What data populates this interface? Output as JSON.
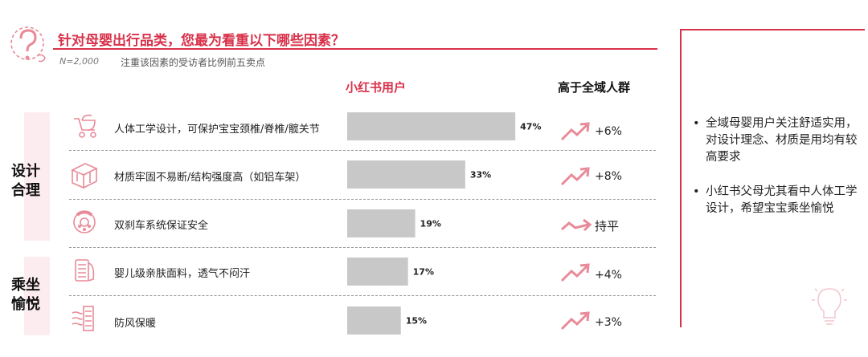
{
  "header": {
    "title": "针对母婴出行品类，您最为看重以下哪些因素？",
    "sample_size": "N=2,000",
    "subtitle": "注重该因素的受访者比例前五卖点"
  },
  "columns": {
    "share_header": "小红书用户",
    "diff_header": "高于全域人群"
  },
  "groups": [
    {
      "label_line1": "设计",
      "label_line2": "合理"
    },
    {
      "label_line1": "乘坐",
      "label_line2": "愉悦"
    }
  ],
  "chart_data": {
    "type": "bar",
    "orientation": "horizontal",
    "categories": [
      "人体工学设计，可保护宝宝颈椎/脊椎/髋关节",
      "材质牢固不易断/结构强度高（如铝车架）",
      "双刹车系统保证安全",
      "婴儿级亲肤面料，透气不闷汗",
      "防风保暖"
    ],
    "series": [
      {
        "name": "小红书用户",
        "values": [
          47,
          33,
          19,
          17,
          15
        ],
        "labels": [
          "47%",
          "33%",
          "19%",
          "17%",
          "15%"
        ]
      }
    ],
    "unit": "%",
    "xlim": [
      0,
      100
    ],
    "bar_color": "#c8c8c8",
    "grid": false
  },
  "diffs": [
    {
      "text": "+6%",
      "icon": "trend-up-icon"
    },
    {
      "text": "+8%",
      "icon": "trend-up-icon"
    },
    {
      "text": "持平",
      "icon": "trend-flat-icon"
    },
    {
      "text": "+4%",
      "icon": "trend-up-icon"
    },
    {
      "text": "+3%",
      "icon": "trend-up-icon"
    }
  ],
  "row_icons": [
    "stroller-icon",
    "metal-beam-icon",
    "brake-disc-icon",
    "fabric-icon",
    "windproof-icon"
  ],
  "insights": [
    "全域母婴用户关注舒适实用，对设计理念、材质是用均有较高要求",
    "小红书父母尤其看中人体工学设计，希望宝宝乘坐愉悦"
  ],
  "colors": {
    "accent": "#d8314a",
    "group_bg": "#fdecef",
    "icon_stroke": "#e88a98",
    "bar": "#c8c8c8"
  }
}
